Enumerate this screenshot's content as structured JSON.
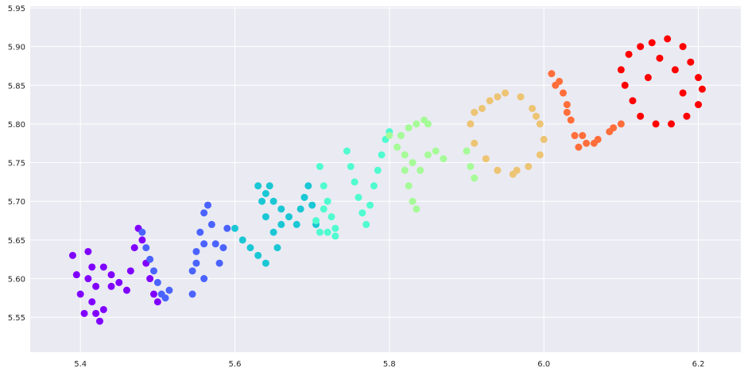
{
  "chart_data": {
    "type": "scatter",
    "title": "",
    "xlabel": "",
    "ylabel": "",
    "xlim": [
      5.335,
      6.255
    ],
    "ylim": [
      5.505,
      5.952
    ],
    "x_ticks": [
      {
        "value": 5.4,
        "label": "5.4"
      },
      {
        "value": 5.6,
        "label": "5.6"
      },
      {
        "value": 5.8,
        "label": "5.8"
      },
      {
        "value": 6.0,
        "label": "6.0"
      },
      {
        "value": 6.2,
        "label": "6.2"
      }
    ],
    "y_ticks": [
      {
        "value": 5.55,
        "label": "5.55"
      },
      {
        "value": 5.6,
        "label": "5.60"
      },
      {
        "value": 5.65,
        "label": "5.65"
      },
      {
        "value": 5.7,
        "label": "5.70"
      },
      {
        "value": 5.75,
        "label": "5.75"
      },
      {
        "value": 5.8,
        "label": "5.80"
      },
      {
        "value": 5.85,
        "label": "5.85"
      },
      {
        "value": 5.9,
        "label": "5.90"
      },
      {
        "value": 5.95,
        "label": "5.95"
      }
    ],
    "grid": true,
    "background_color": "#eaeaf2",
    "grid_color": "#ffffff",
    "colormap": "rainbow",
    "series": [
      {
        "color": "#8000ff",
        "points": [
          [
            5.39,
            5.63
          ],
          [
            5.395,
            5.605
          ],
          [
            5.4,
            5.58
          ],
          [
            5.405,
            5.555
          ],
          [
            5.41,
            5.6
          ],
          [
            5.41,
            5.635
          ],
          [
            5.415,
            5.57
          ],
          [
            5.42,
            5.555
          ],
          [
            5.425,
            5.545
          ],
          [
            5.43,
            5.56
          ],
          [
            5.42,
            5.59
          ],
          [
            5.415,
            5.615
          ],
          [
            5.43,
            5.615
          ],
          [
            5.44,
            5.605
          ],
          [
            5.45,
            5.595
          ],
          [
            5.46,
            5.585
          ],
          [
            5.465,
            5.61
          ],
          [
            5.47,
            5.64
          ],
          [
            5.475,
            5.665
          ],
          [
            5.48,
            5.65
          ],
          [
            5.485,
            5.62
          ],
          [
            5.49,
            5.6
          ],
          [
            5.495,
            5.58
          ],
          [
            5.5,
            5.57
          ],
          [
            5.44,
            5.59
          ]
        ]
      },
      {
        "color": "#4b63fe",
        "points": [
          [
            5.48,
            5.66
          ],
          [
            5.485,
            5.64
          ],
          [
            5.49,
            5.625
          ],
          [
            5.495,
            5.61
          ],
          [
            5.5,
            5.595
          ],
          [
            5.505,
            5.58
          ],
          [
            5.51,
            5.575
          ],
          [
            5.515,
            5.585
          ],
          [
            5.545,
            5.58
          ],
          [
            5.545,
            5.61
          ],
          [
            5.55,
            5.635
          ],
          [
            5.555,
            5.66
          ],
          [
            5.56,
            5.685
          ],
          [
            5.565,
            5.695
          ],
          [
            5.57,
            5.67
          ],
          [
            5.575,
            5.645
          ],
          [
            5.58,
            5.62
          ],
          [
            5.585,
            5.64
          ],
          [
            5.59,
            5.665
          ],
          [
            5.56,
            5.645
          ],
          [
            5.55,
            5.62
          ],
          [
            5.56,
            5.6
          ]
        ]
      },
      {
        "color": "#1ac7d4",
        "points": [
          [
            5.6,
            5.665
          ],
          [
            5.61,
            5.65
          ],
          [
            5.62,
            5.64
          ],
          [
            5.63,
            5.63
          ],
          [
            5.64,
            5.62
          ],
          [
            5.63,
            5.72
          ],
          [
            5.64,
            5.71
          ],
          [
            5.65,
            5.7
          ],
          [
            5.66,
            5.69
          ],
          [
            5.67,
            5.68
          ],
          [
            5.68,
            5.67
          ],
          [
            5.685,
            5.69
          ],
          [
            5.69,
            5.705
          ],
          [
            5.695,
            5.72
          ],
          [
            5.7,
            5.695
          ],
          [
            5.705,
            5.67
          ],
          [
            5.65,
            5.66
          ],
          [
            5.655,
            5.64
          ],
          [
            5.66,
            5.67
          ],
          [
            5.64,
            5.68
          ],
          [
            5.635,
            5.7
          ],
          [
            5.645,
            5.72
          ]
        ]
      },
      {
        "color": "#50fbd0",
        "points": [
          [
            5.71,
            5.745
          ],
          [
            5.715,
            5.72
          ],
          [
            5.72,
            5.7
          ],
          [
            5.725,
            5.68
          ],
          [
            5.73,
            5.665
          ],
          [
            5.73,
            5.655
          ],
          [
            5.71,
            5.66
          ],
          [
            5.705,
            5.675
          ],
          [
            5.715,
            5.69
          ],
          [
            5.72,
            5.66
          ],
          [
            5.745,
            5.765
          ],
          [
            5.75,
            5.745
          ],
          [
            5.755,
            5.725
          ],
          [
            5.76,
            5.705
          ],
          [
            5.765,
            5.685
          ],
          [
            5.77,
            5.67
          ],
          [
            5.775,
            5.695
          ],
          [
            5.78,
            5.72
          ],
          [
            5.785,
            5.74
          ],
          [
            5.79,
            5.76
          ],
          [
            5.795,
            5.78
          ],
          [
            5.8,
            5.79
          ]
        ]
      },
      {
        "color": "#a6fb98",
        "points": [
          [
            5.8,
            5.785
          ],
          [
            5.81,
            5.77
          ],
          [
            5.82,
            5.76
          ],
          [
            5.83,
            5.75
          ],
          [
            5.84,
            5.74
          ],
          [
            5.85,
            5.76
          ],
          [
            5.86,
            5.765
          ],
          [
            5.87,
            5.755
          ],
          [
            5.815,
            5.785
          ],
          [
            5.825,
            5.795
          ],
          [
            5.835,
            5.8
          ],
          [
            5.845,
            5.805
          ],
          [
            5.85,
            5.8
          ],
          [
            5.82,
            5.74
          ],
          [
            5.825,
            5.72
          ],
          [
            5.83,
            5.7
          ],
          [
            5.835,
            5.69
          ],
          [
            5.9,
            5.765
          ],
          [
            5.905,
            5.745
          ],
          [
            5.91,
            5.73
          ]
        ]
      },
      {
        "color": "#edc473",
        "points": [
          [
            5.92,
            5.82
          ],
          [
            5.93,
            5.83
          ],
          [
            5.95,
            5.84
          ],
          [
            5.97,
            5.835
          ],
          [
            5.985,
            5.82
          ],
          [
            5.995,
            5.8
          ],
          [
            6.0,
            5.78
          ],
          [
            5.995,
            5.76
          ],
          [
            5.98,
            5.745
          ],
          [
            5.96,
            5.735
          ],
          [
            5.94,
            5.74
          ],
          [
            5.925,
            5.755
          ],
          [
            5.91,
            5.775
          ],
          [
            5.905,
            5.8
          ],
          [
            5.91,
            5.815
          ],
          [
            5.94,
            5.835
          ],
          [
            5.99,
            5.81
          ],
          [
            5.965,
            5.74
          ]
        ]
      },
      {
        "color": "#ff6e3a",
        "points": [
          [
            6.01,
            5.865
          ],
          [
            6.02,
            5.855
          ],
          [
            6.025,
            5.84
          ],
          [
            6.03,
            5.825
          ],
          [
            6.035,
            5.805
          ],
          [
            6.04,
            5.785
          ],
          [
            6.045,
            5.77
          ],
          [
            6.055,
            5.775
          ],
          [
            6.07,
            5.78
          ],
          [
            6.085,
            5.79
          ],
          [
            6.1,
            5.8
          ],
          [
            6.015,
            5.85
          ],
          [
            6.03,
            5.815
          ],
          [
            6.05,
            5.785
          ],
          [
            6.065,
            5.775
          ],
          [
            6.09,
            5.795
          ]
        ]
      },
      {
        "color": "#ff0000",
        "points": [
          [
            6.1,
            5.87
          ],
          [
            6.11,
            5.89
          ],
          [
            6.125,
            5.9
          ],
          [
            6.14,
            5.905
          ],
          [
            6.16,
            5.91
          ],
          [
            6.18,
            5.9
          ],
          [
            6.19,
            5.88
          ],
          [
            6.2,
            5.86
          ],
          [
            6.205,
            5.845
          ],
          [
            6.2,
            5.825
          ],
          [
            6.185,
            5.81
          ],
          [
            6.165,
            5.8
          ],
          [
            6.145,
            5.8
          ],
          [
            6.125,
            5.81
          ],
          [
            6.115,
            5.83
          ],
          [
            6.105,
            5.85
          ],
          [
            6.15,
            5.885
          ],
          [
            6.17,
            5.87
          ],
          [
            6.18,
            5.84
          ],
          [
            6.135,
            5.86
          ]
        ]
      }
    ]
  }
}
